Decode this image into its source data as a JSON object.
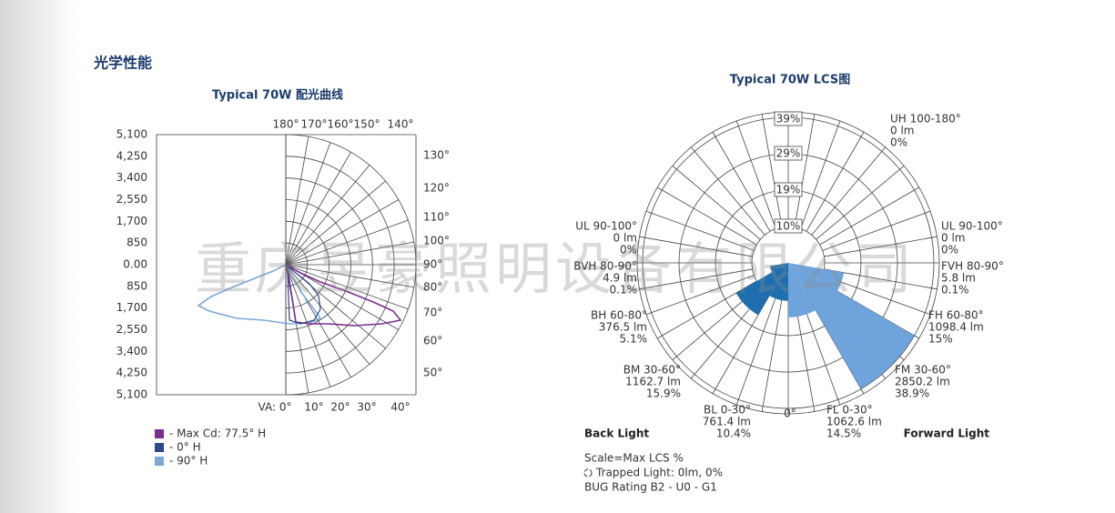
{
  "header": {
    "title": "光学性能"
  },
  "watermark": "重庆昱豪照明设备有限公司",
  "candela_chart": {
    "title": "Typical 70W 配光曲线",
    "y_labels": [
      "5,100",
      "4,250",
      "3,400",
      "2,550",
      "1,700",
      "850",
      "0.00",
      "850",
      "1,700",
      "2,550",
      "3,400",
      "4,250",
      "5,100"
    ],
    "top_angles": [
      "180°",
      "170°",
      "160°",
      "150°",
      "140°"
    ],
    "right_angles": [
      "130°",
      "120°",
      "110°",
      "100°",
      "90°",
      "80°",
      "70°",
      "60°",
      "50°"
    ],
    "bottom_angles": [
      "VA: 0°",
      "10°",
      "20°",
      "30°",
      "40°"
    ],
    "legend": [
      {
        "name": "- Max Cd: 77.5° H",
        "color": "#7b2d8e"
      },
      {
        "name": "- 0° H",
        "color": "#2c4a8a"
      },
      {
        "name": "- 90° H",
        "color": "#7fa6d8"
      }
    ]
  },
  "lcs_chart": {
    "title": "Typical 70W LCS图",
    "rings": [
      "10%",
      "19%",
      "29%",
      "39%"
    ],
    "uh": {
      "name": "UH 100-180°",
      "lumens": "0 lm",
      "percent": "0%"
    },
    "back_zones": [
      {
        "name": "UL 90-100°",
        "lumens": "0 lm",
        "percent": "0%"
      },
      {
        "name": "BVH 80-90°",
        "lumens": "4.9 lm",
        "percent": "0.1%"
      },
      {
        "name": "BH 60-80°",
        "lumens": "376.5 lm",
        "percent": "5.1%"
      },
      {
        "name": "BM 30-60°",
        "lumens": "1162.7 lm",
        "percent": "15.9%"
      },
      {
        "name": "BL 0-30°",
        "lumens": "761.4 lm",
        "percent": "10.4%"
      }
    ],
    "forward_zones": [
      {
        "name": "UL 90-100°",
        "lumens": "0 lm",
        "percent": "0%"
      },
      {
        "name": "FVH 80-90°",
        "lumens": "5.8 lm",
        "percent": "0.1%"
      },
      {
        "name": "FH 60-80°",
        "lumens": "1098.4 lm",
        "percent": "15%"
      },
      {
        "name": "FM 30-60°",
        "lumens": "2850.2 lm",
        "percent": "38.9%"
      },
      {
        "name": "FL 0-30°",
        "lumens": "1062.6 lm",
        "percent": "14.5%"
      }
    ],
    "nadir": "0°",
    "back_label": "Back Light",
    "forward_label": "Forward Light",
    "notes": [
      "Scale=Max LCS %",
      "Trapped Light: 0lm, 0%",
      "BUG Rating B2 - U0 - G1"
    ]
  }
}
